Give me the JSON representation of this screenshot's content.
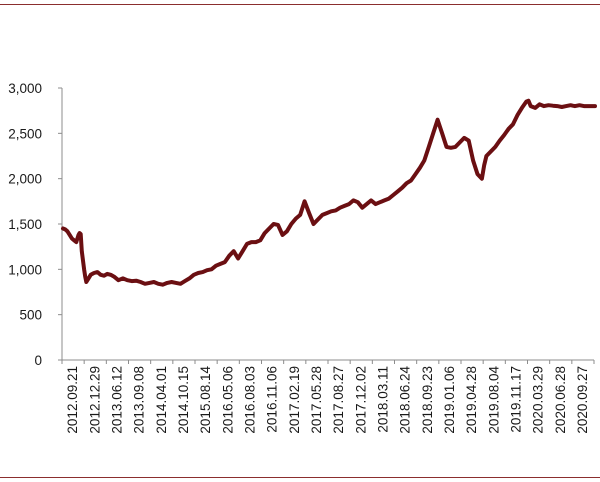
{
  "chart_data": {
    "type": "line",
    "title": "",
    "xlabel": "",
    "ylabel": "",
    "ylim": [
      0,
      3000
    ],
    "yticks": [
      0,
      500,
      1000,
      1500,
      2000,
      2500,
      3000
    ],
    "ytick_labels": [
      "0",
      "500",
      "1,000",
      "1,500",
      "2,000",
      "2,500",
      "3,000"
    ],
    "xtick_labels": [
      "2012.09.21",
      "2012.12.29",
      "2013.06.12",
      "2013.09.08",
      "2014.04.01",
      "2014.10.15",
      "2015.08.14",
      "2016.05.06",
      "2016.08.03",
      "2016.11.06",
      "2017.02.19",
      "2017.05.28",
      "2017.08.27",
      "2017.12.02",
      "2018.03.11",
      "2018.06.24",
      "2018.09.23",
      "2019.01.06",
      "2019.04.28",
      "2019.08.04",
      "2019.11.17",
      "2020.03.29",
      "2020.06.28",
      "2020.09.27"
    ],
    "grid": false,
    "legend": "none",
    "line_color": "#6b0f12",
    "series": [
      {
        "x": [
          0,
          0.1,
          0.2,
          0.3,
          0.4,
          0.5,
          0.6,
          0.7,
          0.75,
          0.8,
          0.85,
          0.95,
          1.0,
          1.05,
          1.15,
          1.25,
          1.4,
          1.55,
          1.7,
          1.85,
          2.0,
          2.15,
          2.3,
          2.5,
          2.7,
          2.9,
          3.1,
          3.3,
          3.5,
          3.7,
          3.9,
          4.1,
          4.3,
          4.5,
          4.7,
          4.9,
          5.1,
          5.3,
          5.5,
          5.7,
          5.9,
          6.1,
          6.3,
          6.5,
          6.7,
          6.9,
          7.1,
          7.3,
          7.5,
          7.7,
          7.9,
          8.1,
          8.3,
          8.5,
          8.7,
          8.9,
          9.1,
          9.3,
          9.5,
          9.7,
          9.9,
          10.1,
          10.3,
          10.5,
          10.7,
          10.9,
          11.1,
          11.3,
          11.5,
          11.7,
          11.9,
          12.1,
          12.3,
          12.5,
          12.7,
          12.9,
          13.1,
          13.3,
          13.5,
          13.7,
          13.9,
          14.1,
          14.3,
          14.5,
          14.7,
          14.9,
          15.1,
          15.3,
          15.5,
          15.7,
          15.9,
          16.1,
          16.3,
          16.5,
          16.7,
          16.9,
          17.1,
          17.3,
          17.5,
          17.7,
          17.9,
          18.1,
          18.3,
          18.5,
          18.7,
          18.9,
          19.0,
          19.1,
          19.3,
          19.5,
          19.7,
          19.9,
          20.1,
          20.3,
          20.5,
          20.7,
          20.9,
          21.0,
          21.1,
          21.3,
          21.5,
          21.7,
          21.9,
          22.1,
          22.3,
          22.5,
          22.7,
          22.9,
          23.0,
          23.1,
          23.3,
          23.5,
          23.7,
          23.9,
          24.0
        ],
        "y": [
          1450,
          1440,
          1420,
          1380,
          1340,
          1320,
          1300,
          1380,
          1400,
          1390,
          1200,
          1000,
          920,
          860,
          900,
          940,
          960,
          970,
          940,
          930,
          950,
          940,
          920,
          880,
          900,
          880,
          870,
          875,
          860,
          840,
          850,
          860,
          840,
          830,
          850,
          860,
          850,
          840,
          870,
          900,
          940,
          960,
          970,
          990,
          1000,
          1040,
          1060,
          1080,
          1150,
          1200,
          1120,
          1200,
          1280,
          1300,
          1300,
          1320,
          1400,
          1450,
          1500,
          1490,
          1380,
          1420,
          1500,
          1560,
          1600,
          1750,
          1620,
          1500,
          1550,
          1600,
          1620,
          1640,
          1650,
          1680,
          1700,
          1720,
          1760,
          1740,
          1680,
          1720,
          1760,
          1720,
          1740,
          1760,
          1780,
          1820,
          1860,
          1900,
          1950,
          1980,
          2050,
          2120,
          2200,
          2350,
          2500,
          2650,
          2500,
          2350,
          2340,
          2350,
          2400,
          2450,
          2420,
          2200,
          2050,
          2000,
          2150,
          2250,
          2300,
          2350,
          2420,
          2480,
          2550,
          2600,
          2700,
          2780,
          2850,
          2860,
          2800,
          2780,
          2820,
          2800,
          2810,
          2805,
          2800,
          2790,
          2800,
          2810,
          2805,
          2800,
          2810,
          2800,
          2800,
          2800,
          2800
        ]
      }
    ]
  }
}
